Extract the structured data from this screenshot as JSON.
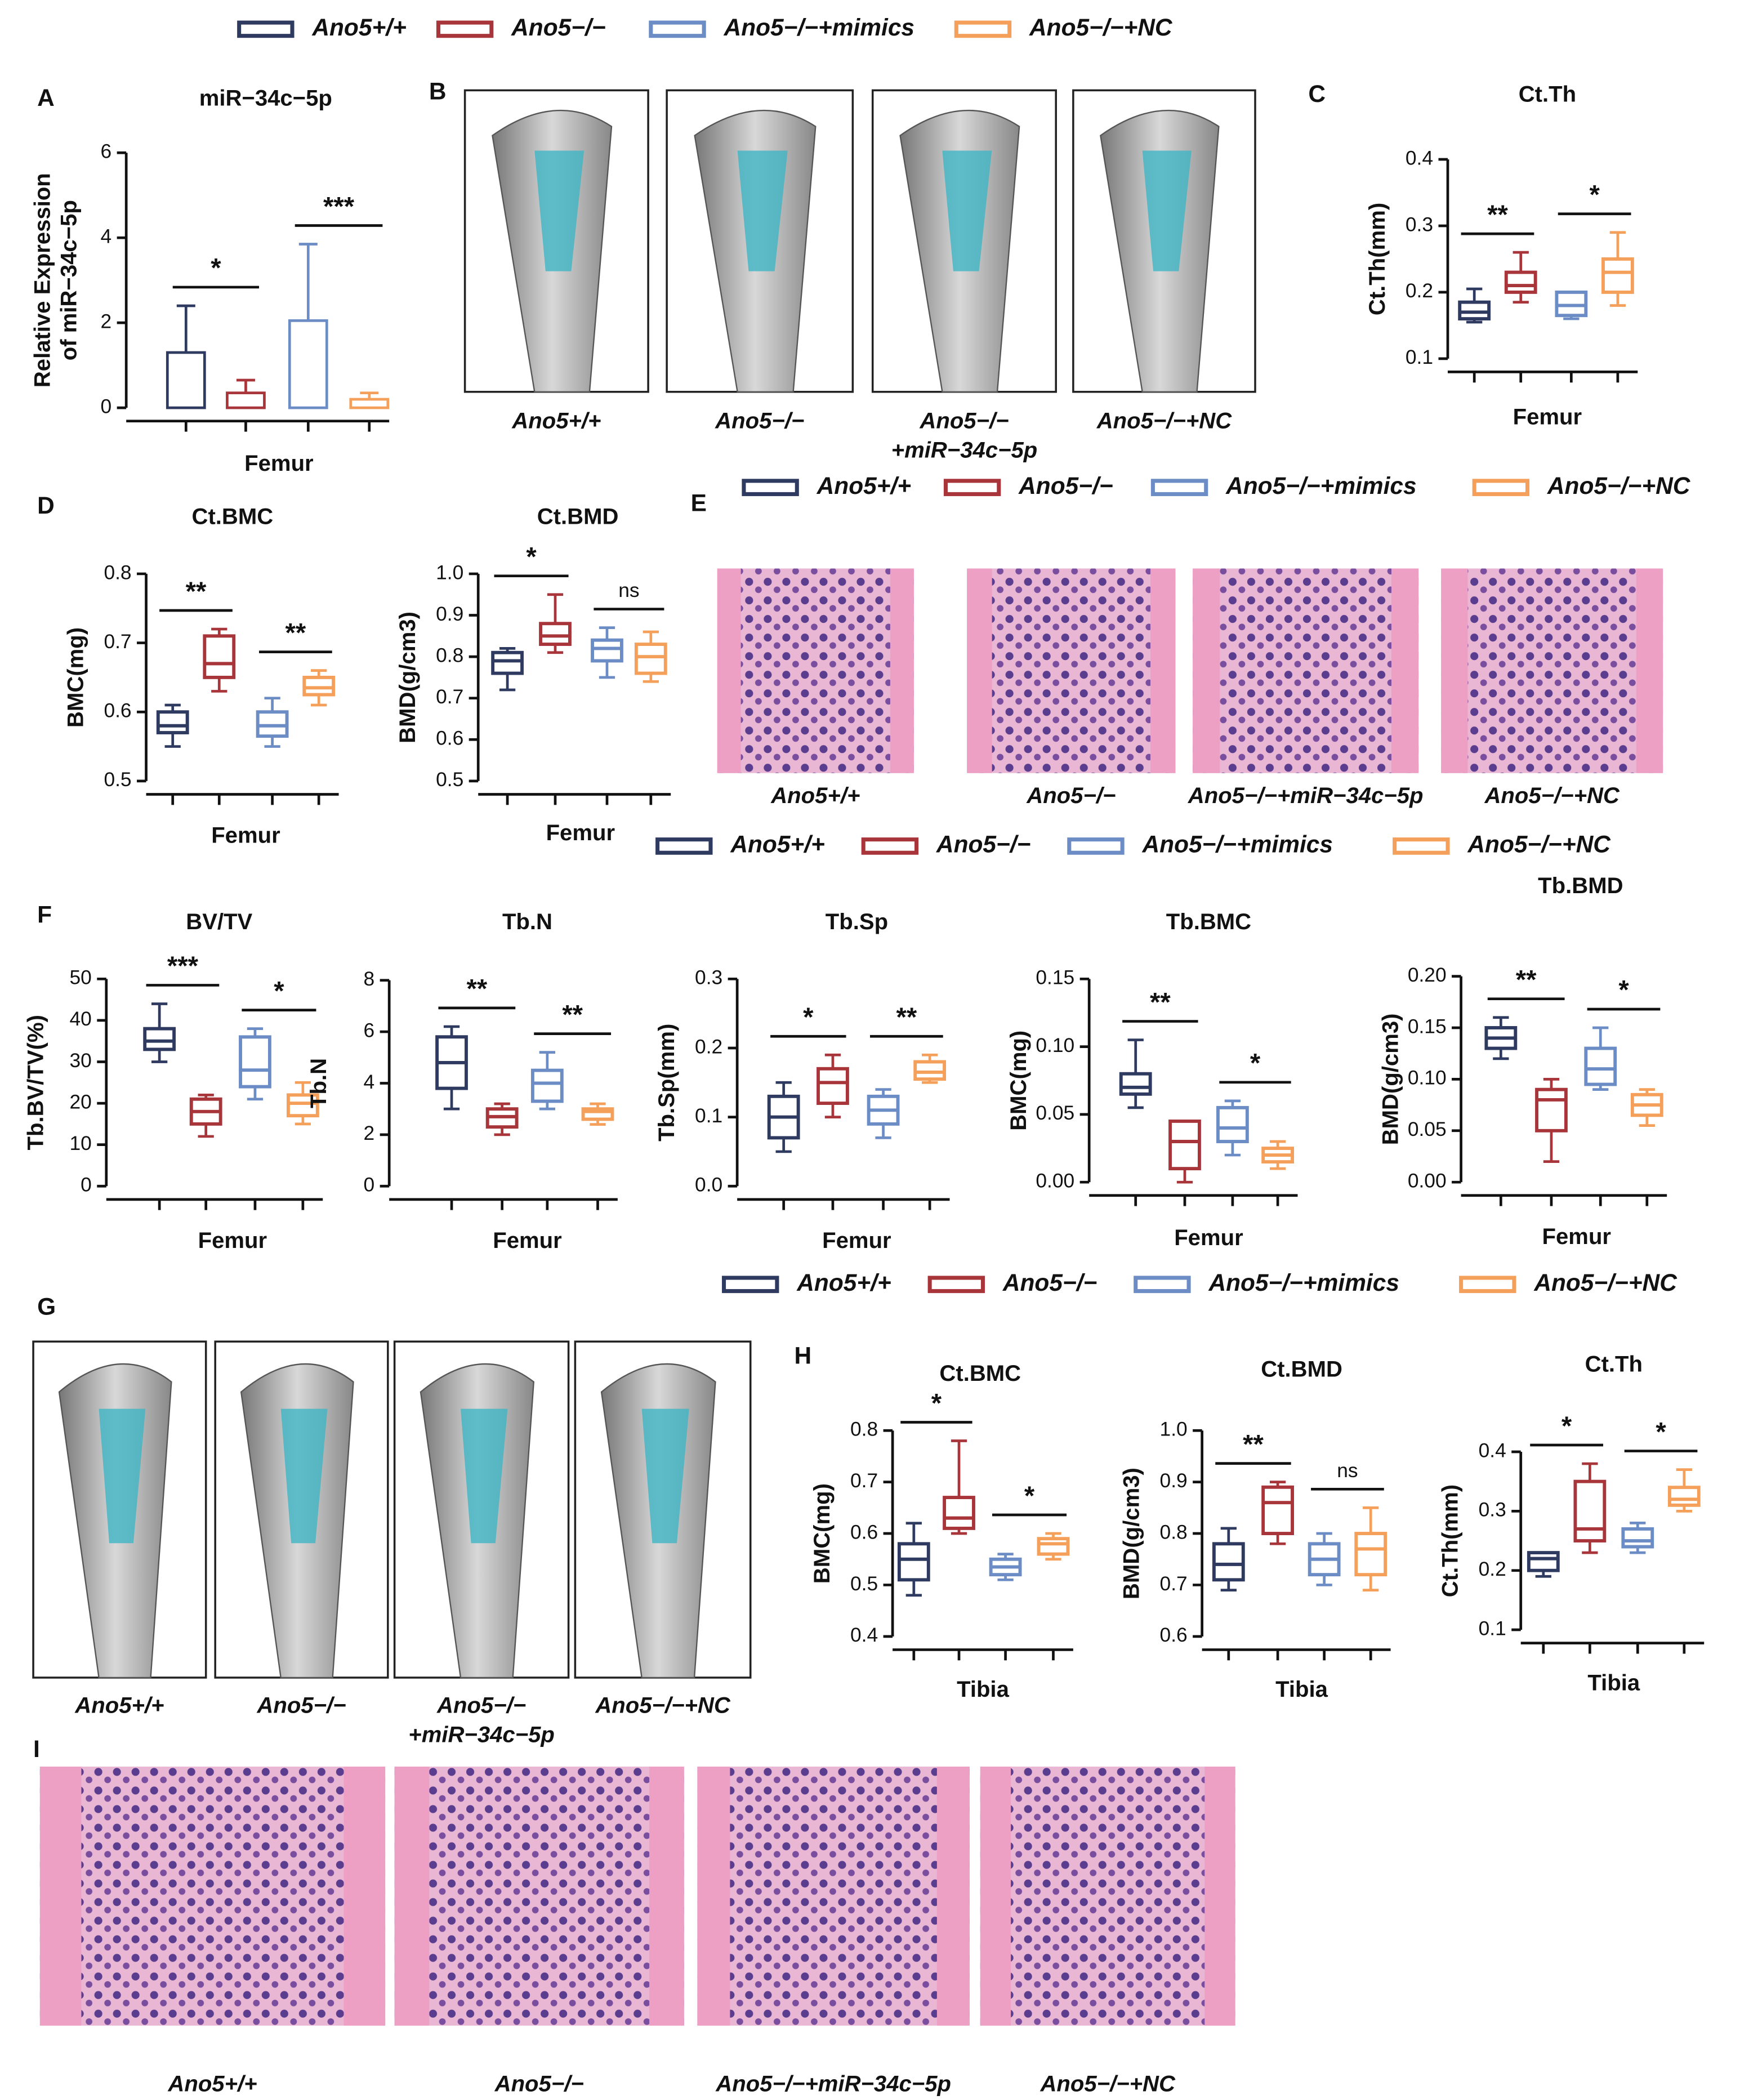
{
  "panel_labels": [
    "A",
    "B",
    "C",
    "D",
    "E",
    "F",
    "G",
    "H",
    "I"
  ],
  "colors": [
    "#2f3a60",
    "#a8353a",
    "#6b8cc4",
    "#f5a05a"
  ],
  "legends": [
    {
      "names": [
        "Ano5+/+",
        "Ano5−/−",
        "Ano5−/−+mimics",
        "Ano5−/−+NC"
      ]
    },
    {
      "names": [
        "Ano5+/+",
        "Ano5−/−",
        "Ano5−/−+mimics",
        "Ano5−/−+NC"
      ]
    },
    {
      "names": [
        "Ano5+/+",
        "Ano5−/−",
        "Ano5−/−+mimics",
        "Ano5−/−+NC"
      ]
    },
    {
      "names": [
        "Ano5+/+",
        "Ano5−/−",
        "Ano5−/−+mimics",
        "Ano5−/−+NC"
      ]
    }
  ],
  "images": [
    {
      "kind": "ct",
      "captions": [
        [
          "Ano5+/+"
        ],
        [
          "Ano5−/−"
        ],
        [
          "Ano5−/−",
          "+miR−34c−5p"
        ],
        [
          "Ano5−/−+NC"
        ]
      ]
    },
    {
      "kind": "he",
      "captions": [
        [
          "Ano5+/+"
        ],
        [
          "Ano5−/−"
        ],
        [
          "Ano5−/−+miR−34c−5p"
        ],
        [
          "Ano5−/−+NC"
        ]
      ]
    },
    {
      "kind": "ct",
      "captions": [
        [
          "Ano5+/+"
        ],
        [
          "Ano5−/−"
        ],
        [
          "Ano5−/−",
          "+miR−34c−5p"
        ],
        [
          "Ano5−/−+NC"
        ]
      ]
    },
    {
      "kind": "he",
      "captions": [
        [
          "Ano5+/+"
        ],
        [
          "Ano5−/−"
        ],
        [
          "Ano5−/−+miR−34c−5p"
        ],
        [
          "Ano5−/−+NC"
        ]
      ]
    }
  ],
  "chart_data": [
    {
      "type": "bar",
      "title": "miR−34c−5p",
      "ylabel": [
        "Relative Expression",
        "of miR−34c−5p"
      ],
      "xlabel": "Femur",
      "values": [
        1.3,
        0.35,
        2.05,
        0.2
      ],
      "errors": [
        1.1,
        0.3,
        1.8,
        0.15
      ],
      "ylim": [
        0,
        6
      ],
      "yticks": [
        0,
        2,
        4,
        6
      ],
      "annotations": [
        "*",
        "***"
      ]
    },
    {
      "type": "box",
      "title": "Ct.Th",
      "ylabel": "Ct.Th(mm)",
      "xlabel": "Femur",
      "ylim": [
        0.1,
        0.4
      ],
      "yticks": [
        0.1,
        0.2,
        0.3,
        0.4
      ],
      "annotations": [
        "**",
        "*"
      ],
      "boxes": [
        {
          "min": 0.155,
          "q1": 0.16,
          "median": 0.17,
          "q3": 0.185,
          "max": 0.205
        },
        {
          "min": 0.185,
          "q1": 0.2,
          "median": 0.21,
          "q3": 0.23,
          "max": 0.26
        },
        {
          "min": 0.16,
          "q1": 0.165,
          "median": 0.18,
          "q3": 0.2,
          "max": 0.2
        },
        {
          "min": 0.18,
          "q1": 0.2,
          "median": 0.23,
          "q3": 0.25,
          "max": 0.29
        }
      ]
    },
    {
      "type": "box",
      "title": "Ct.BMC",
      "ylabel": "BMC(mg)",
      "xlabel": "Femur",
      "ylim": [
        0.5,
        0.8
      ],
      "yticks": [
        0.5,
        0.6,
        0.7,
        0.8
      ],
      "annotations": [
        "**",
        "**"
      ],
      "boxes": [
        {
          "min": 0.55,
          "q1": 0.57,
          "median": 0.58,
          "q3": 0.6,
          "max": 0.61
        },
        {
          "min": 0.63,
          "q1": 0.65,
          "median": 0.67,
          "q3": 0.71,
          "max": 0.72
        },
        {
          "min": 0.55,
          "q1": 0.565,
          "median": 0.58,
          "q3": 0.6,
          "max": 0.62
        },
        {
          "min": 0.61,
          "q1": 0.625,
          "median": 0.635,
          "q3": 0.65,
          "max": 0.66
        }
      ]
    },
    {
      "type": "box",
      "title": "Ct.BMD",
      "ylabel": "BMD(g/cm3)",
      "xlabel": "Femur",
      "ylim": [
        0.5,
        1.0
      ],
      "yticks": [
        0.5,
        0.6,
        0.7,
        0.8,
        0.9,
        {
          "value": 1.0,
          "label": "1.0"
        }
      ],
      "annotations": [
        "*",
        "ns"
      ],
      "boxes": [
        {
          "min": 0.72,
          "q1": 0.76,
          "median": 0.79,
          "q3": 0.81,
          "max": 0.82
        },
        {
          "min": 0.81,
          "q1": 0.83,
          "median": 0.85,
          "q3": 0.88,
          "max": 0.95
        },
        {
          "min": 0.75,
          "q1": 0.79,
          "median": 0.82,
          "q3": 0.84,
          "max": 0.87
        },
        {
          "min": 0.74,
          "q1": 0.76,
          "median": 0.8,
          "q3": 0.83,
          "max": 0.86
        }
      ]
    },
    {
      "type": "box",
      "title": "BV/TV",
      "ylabel": "Tb.BV/TV(%)",
      "xlabel": "Femur",
      "ylim": [
        0,
        50
      ],
      "yticks": [
        0,
        10,
        20,
        30,
        40,
        50
      ],
      "annotations": [
        "***",
        "*"
      ],
      "boxes": [
        {
          "min": 30,
          "q1": 33,
          "median": 35,
          "q3": 38,
          "max": 44
        },
        {
          "min": 12,
          "q1": 15,
          "median": 18,
          "q3": 21,
          "max": 22
        },
        {
          "min": 21,
          "q1": 24,
          "median": 28,
          "q3": 36,
          "max": 38
        },
        {
          "min": 15,
          "q1": 17,
          "median": 20,
          "q3": 22,
          "max": 25
        }
      ]
    },
    {
      "type": "box",
      "title": "Tb.N",
      "ylabel": "Tb.N",
      "xlabel": "Femur",
      "ylim": [
        0,
        8
      ],
      "yticks": [
        0,
        2,
        4,
        6,
        8
      ],
      "annotations": [
        "**",
        "**"
      ],
      "boxes": [
        {
          "min": 3,
          "q1": 3.8,
          "median": 4.8,
          "q3": 5.8,
          "max": 6.2
        },
        {
          "min": 2,
          "q1": 2.3,
          "median": 2.7,
          "q3": 3,
          "max": 3.2
        },
        {
          "min": 3,
          "q1": 3.3,
          "median": 4,
          "q3": 4.5,
          "max": 5.2
        },
        {
          "min": 2.4,
          "q1": 2.6,
          "median": 2.9,
          "q3": 3,
          "max": 3.2
        }
      ]
    },
    {
      "type": "box",
      "title": "Tb.Sp",
      "ylabel": "Tb.Sp(mm)",
      "xlabel": "Femur",
      "ylim": [
        0,
        0.3
      ],
      "yticks": [
        {
          "value": 0,
          "label": "0.0"
        },
        0.1,
        0.2,
        0.3
      ],
      "annotations": [
        "*",
        "**"
      ],
      "boxes": [
        {
          "min": 0.05,
          "q1": 0.07,
          "median": 0.1,
          "q3": 0.13,
          "max": 0.15
        },
        {
          "min": 0.1,
          "q1": 0.12,
          "median": 0.15,
          "q3": 0.17,
          "max": 0.19
        },
        {
          "min": 0.07,
          "q1": 0.09,
          "median": 0.11,
          "q3": 0.13,
          "max": 0.14
        },
        {
          "min": 0.15,
          "q1": 0.155,
          "median": 0.165,
          "q3": 0.18,
          "max": 0.19
        }
      ]
    },
    {
      "type": "box",
      "title": "Tb.BMC",
      "ylabel": "BMC(mg)",
      "xlabel": "Femur",
      "ylim": [
        0,
        0.15
      ],
      "yticks": [
        {
          "value": 0,
          "label": "0.00"
        },
        0.05,
        {
          "value": 0.1,
          "label": "0.10"
        },
        0.15
      ],
      "annotations": [
        "**",
        "*"
      ],
      "boxes": [
        {
          "min": 0.055,
          "q1": 0.065,
          "median": 0.07,
          "q3": 0.08,
          "max": 0.105
        },
        {
          "min": 0.0,
          "q1": 0.01,
          "median": 0.03,
          "q3": 0.045,
          "max": 0.045
        },
        {
          "min": 0.02,
          "q1": 0.03,
          "median": 0.04,
          "q3": 0.055,
          "max": 0.06
        },
        {
          "min": 0.01,
          "q1": 0.015,
          "median": 0.02,
          "q3": 0.025,
          "max": 0.03
        }
      ]
    },
    {
      "type": "box",
      "title": "Tb.BMD",
      "ylabel": "BMD(g/cm3)",
      "xlabel": "Femur",
      "ylim": [
        0,
        0.2
      ],
      "yticks": [
        {
          "value": 0,
          "label": "0.00"
        },
        0.05,
        {
          "value": 0.1,
          "label": "0.10"
        },
        0.15,
        {
          "value": 0.2,
          "label": "0.20"
        }
      ],
      "annotations": [
        "**",
        "*"
      ],
      "boxes": [
        {
          "min": 0.12,
          "q1": 0.13,
          "median": 0.14,
          "q3": 0.15,
          "max": 0.16
        },
        {
          "min": 0.02,
          "q1": 0.05,
          "median": 0.08,
          "q3": 0.09,
          "max": 0.1
        },
        {
          "min": 0.09,
          "q1": 0.095,
          "median": 0.11,
          "q3": 0.13,
          "max": 0.15
        },
        {
          "min": 0.055,
          "q1": 0.065,
          "median": 0.075,
          "q3": 0.085,
          "max": 0.09
        }
      ]
    },
    {
      "type": "box",
      "title": "Ct.BMC",
      "ylabel": "BMC(mg)",
      "xlabel": "Tibia",
      "ylim": [
        0.4,
        0.8
      ],
      "yticks": [
        0.4,
        0.5,
        0.6,
        0.7,
        0.8
      ],
      "annotations": [
        "*",
        "*"
      ],
      "boxes": [
        {
          "min": 0.48,
          "q1": 0.51,
          "median": 0.55,
          "q3": 0.58,
          "max": 0.62
        },
        {
          "min": 0.6,
          "q1": 0.61,
          "median": 0.63,
          "q3": 0.67,
          "max": 0.78
        },
        {
          "min": 0.51,
          "q1": 0.52,
          "median": 0.535,
          "q3": 0.55,
          "max": 0.56
        },
        {
          "min": 0.55,
          "q1": 0.56,
          "median": 0.58,
          "q3": 0.59,
          "max": 0.6
        }
      ]
    },
    {
      "type": "box",
      "title": "Ct.BMD",
      "ylabel": "BMD(g/cm3)",
      "xlabel": "Tibia",
      "ylim": [
        0.6,
        1.0
      ],
      "yticks": [
        0.6,
        0.7,
        0.8,
        0.9,
        {
          "value": 1.0,
          "label": "1.0"
        }
      ],
      "annotations": [
        "**",
        "ns"
      ],
      "boxes": [
        {
          "min": 0.69,
          "q1": 0.71,
          "median": 0.74,
          "q3": 0.78,
          "max": 0.81
        },
        {
          "min": 0.78,
          "q1": 0.8,
          "median": 0.86,
          "q3": 0.89,
          "max": 0.9
        },
        {
          "min": 0.7,
          "q1": 0.72,
          "median": 0.75,
          "q3": 0.78,
          "max": 0.8
        },
        {
          "min": 0.69,
          "q1": 0.72,
          "median": 0.77,
          "q3": 0.8,
          "max": 0.85
        }
      ]
    },
    {
      "type": "box",
      "title": "Ct.Th",
      "ylabel": "Ct.Th(mm)",
      "xlabel": "Tibia",
      "ylim": [
        0.1,
        0.4
      ],
      "yticks": [
        0.1,
        0.2,
        0.3,
        0.4
      ],
      "annotations": [
        "*",
        "*"
      ],
      "boxes": [
        {
          "min": 0.19,
          "q1": 0.2,
          "median": 0.22,
          "q3": 0.23,
          "max": 0.23
        },
        {
          "min": 0.23,
          "q1": 0.25,
          "median": 0.27,
          "q3": 0.35,
          "max": 0.38
        },
        {
          "min": 0.23,
          "q1": 0.24,
          "median": 0.25,
          "q3": 0.27,
          "max": 0.28
        },
        {
          "min": 0.3,
          "q1": 0.31,
          "median": 0.32,
          "q3": 0.34,
          "max": 0.37
        }
      ]
    }
  ]
}
